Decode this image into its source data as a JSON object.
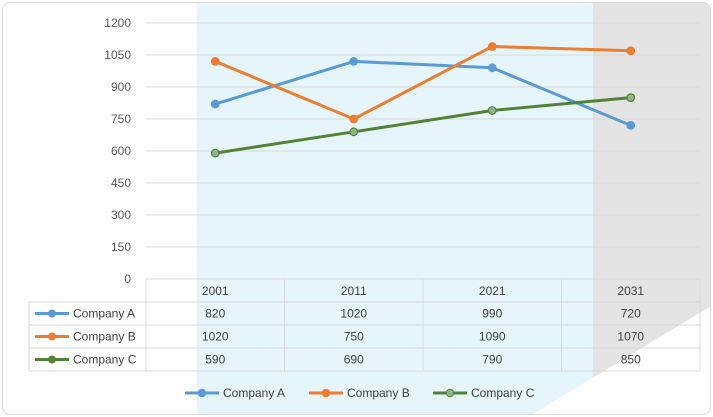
{
  "chart_data": {
    "type": "line",
    "title": "",
    "xlabel": "",
    "ylabel": "",
    "categories": [
      "2001",
      "2011",
      "2021",
      "2031"
    ],
    "ylim": [
      0,
      1200
    ],
    "yticks": [
      "0",
      "150",
      "300",
      "450",
      "600",
      "750",
      "900",
      "1050",
      "1200"
    ],
    "grid": true,
    "legend_position": "bottom",
    "data_table": true,
    "series": [
      {
        "name": "Company A",
        "values": [
          820,
          1020,
          990,
          720
        ],
        "color": "#5b9bd5"
      },
      {
        "name": "Company B",
        "values": [
          1020,
          750,
          1090,
          1070
        ],
        "color": "#ed7d31"
      },
      {
        "name": "Company C",
        "values": [
          590,
          690,
          790,
          850
        ],
        "color": "#548235"
      }
    ],
    "table_cells": [
      [
        "820",
        "1020",
        "990",
        "720"
      ],
      [
        "1020",
        "750",
        "1090",
        "1070"
      ],
      [
        "590",
        "690",
        "790",
        "850"
      ]
    ]
  }
}
